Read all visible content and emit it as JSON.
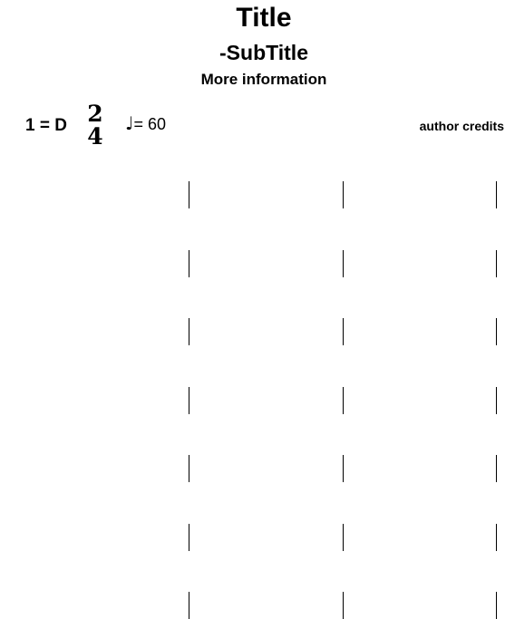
{
  "header": {
    "title": "Title",
    "subtitle": "-SubTitle",
    "info": "More information"
  },
  "meta": {
    "key": "1 = D",
    "time_signature": {
      "numerator": "2",
      "denominator": "4"
    },
    "tempo_note": "♩",
    "tempo_value": "= 60",
    "author": "author credits"
  },
  "staff": {
    "rows": 7,
    "measures_per_row": 3,
    "barlines_per_row": 3,
    "measure_contents": []
  }
}
